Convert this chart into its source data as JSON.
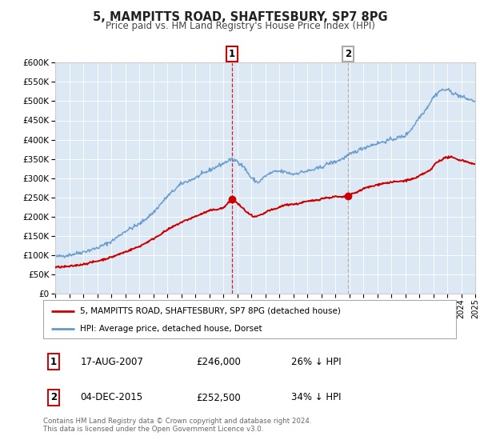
{
  "title": "5, MAMPITTS ROAD, SHAFTESBURY, SP7 8PG",
  "subtitle": "Price paid vs. HM Land Registry's House Price Index (HPI)",
  "plot_bg_color": "#dce9f5",
  "ylim": [
    0,
    600000
  ],
  "yticks": [
    0,
    50000,
    100000,
    150000,
    200000,
    250000,
    300000,
    350000,
    400000,
    450000,
    500000,
    550000,
    600000
  ],
  "legend_line1": "5, MAMPITTS ROAD, SHAFTESBURY, SP7 8PG (detached house)",
  "legend_line2": "HPI: Average price, detached house, Dorset",
  "red_line_color": "#cc0000",
  "blue_line_color": "#6699cc",
  "marker1_date": 2007.625,
  "marker1_value": 246000,
  "marker2_date": 2015.92,
  "marker2_value": 252500,
  "marker1_hpi_date_str": "17-AUG-2007",
  "marker1_price_str": "£246,000",
  "marker1_hpi_str": "26% ↓ HPI",
  "marker2_hpi_date_str": "04-DEC-2015",
  "marker2_price_str": "£252,500",
  "marker2_hpi_str": "34% ↓ HPI",
  "footnote_line1": "Contains HM Land Registry data © Crown copyright and database right 2024.",
  "footnote_line2": "This data is licensed under the Open Government Licence v3.0.",
  "xmin": 1995,
  "xmax": 2025
}
